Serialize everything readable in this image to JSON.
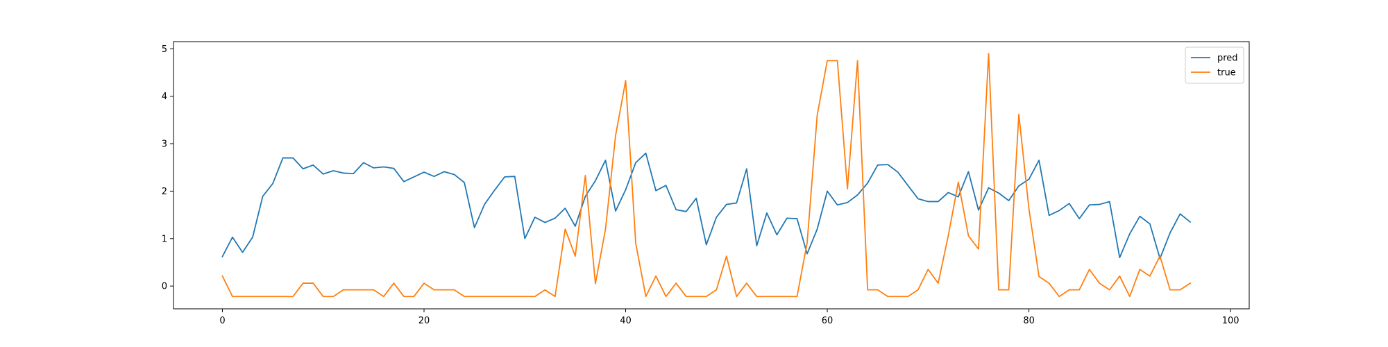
{
  "chart_data": {
    "type": "line",
    "title": "",
    "xlabel": "",
    "ylabel": "",
    "xlim": [
      -4.85,
      101.85
    ],
    "ylim": [
      -0.48,
      5.15
    ],
    "x_ticks": [
      0,
      20,
      40,
      60,
      80,
      100
    ],
    "y_ticks": [
      0,
      1,
      2,
      3,
      4,
      5
    ],
    "grid": false,
    "legend": {
      "position": "top-right"
    },
    "x": [
      0,
      1,
      2,
      3,
      4,
      5,
      6,
      7,
      8,
      9,
      10,
      11,
      12,
      13,
      14,
      15,
      16,
      17,
      18,
      19,
      20,
      21,
      22,
      23,
      24,
      25,
      26,
      27,
      28,
      29,
      30,
      31,
      32,
      33,
      34,
      35,
      36,
      37,
      38,
      39,
      40,
      41,
      42,
      43,
      44,
      45,
      46,
      47,
      48,
      49,
      50,
      51,
      52,
      53,
      54,
      55,
      56,
      57,
      58,
      59,
      60,
      61,
      62,
      63,
      64,
      65,
      66,
      67,
      68,
      69,
      70,
      71,
      72,
      73,
      74,
      75,
      76,
      77,
      78,
      79,
      80,
      81,
      82,
      83,
      84,
      85,
      86,
      87,
      88,
      89,
      90,
      91,
      92,
      93,
      94,
      95,
      96
    ],
    "series": [
      {
        "name": "pred",
        "color": "#1f77b4",
        "values": [
          0.62,
          1.03,
          0.71,
          1.03,
          1.89,
          2.16,
          2.7,
          2.7,
          2.47,
          2.55,
          2.36,
          2.43,
          2.38,
          2.37,
          2.6,
          2.49,
          2.51,
          2.48,
          2.2,
          2.3,
          2.4,
          2.31,
          2.41,
          2.35,
          2.18,
          1.23,
          1.72,
          2.02,
          2.3,
          2.31,
          1.0,
          1.45,
          1.34,
          1.43,
          1.64,
          1.26,
          1.89,
          2.22,
          2.65,
          1.58,
          2.03,
          2.6,
          2.8,
          2.01,
          2.12,
          1.61,
          1.57,
          1.85,
          0.87,
          1.45,
          1.72,
          1.75,
          2.47,
          0.85,
          1.54,
          1.08,
          1.43,
          1.42,
          0.68,
          1.2,
          2.0,
          1.71,
          1.76,
          1.92,
          2.17,
          2.55,
          2.56,
          2.4,
          2.12,
          1.84,
          1.78,
          1.78,
          1.97,
          1.88,
          2.41,
          1.6,
          2.07,
          1.96,
          1.8,
          2.11,
          2.25,
          2.65,
          1.49,
          1.59,
          1.74,
          1.42,
          1.71,
          1.72,
          1.78,
          0.6,
          1.1,
          1.47,
          1.31,
          0.58,
          1.12,
          1.52,
          1.35
        ]
      },
      {
        "name": "true",
        "color": "#ff7f0e",
        "values": [
          0.21,
          -0.22,
          -0.22,
          -0.22,
          -0.22,
          -0.22,
          -0.22,
          -0.22,
          0.06,
          0.06,
          -0.22,
          -0.22,
          -0.08,
          -0.08,
          -0.08,
          -0.08,
          -0.22,
          0.06,
          -0.22,
          -0.22,
          0.06,
          -0.08,
          -0.08,
          -0.08,
          -0.22,
          -0.22,
          -0.22,
          -0.22,
          -0.22,
          -0.22,
          -0.22,
          -0.22,
          -0.08,
          -0.22,
          1.2,
          0.63,
          2.33,
          0.05,
          1.2,
          3.17,
          4.33,
          0.9,
          -0.22,
          0.21,
          -0.22,
          0.06,
          -0.22,
          -0.22,
          -0.22,
          -0.08,
          0.63,
          -0.22,
          0.06,
          -0.22,
          -0.22,
          -0.22,
          -0.22,
          -0.22,
          0.91,
          3.6,
          4.75,
          4.75,
          2.05,
          4.75,
          -0.08,
          -0.08,
          -0.22,
          -0.22,
          -0.22,
          -0.08,
          0.35,
          0.06,
          1.06,
          2.19,
          1.06,
          0.78,
          4.9,
          -0.08,
          -0.08,
          3.62,
          1.63,
          0.2,
          0.06,
          -0.22,
          -0.08,
          -0.08,
          0.35,
          0.06,
          -0.08,
          0.21,
          -0.22,
          0.35,
          0.21,
          0.63,
          -0.08,
          -0.08,
          0.06
        ]
      }
    ]
  }
}
